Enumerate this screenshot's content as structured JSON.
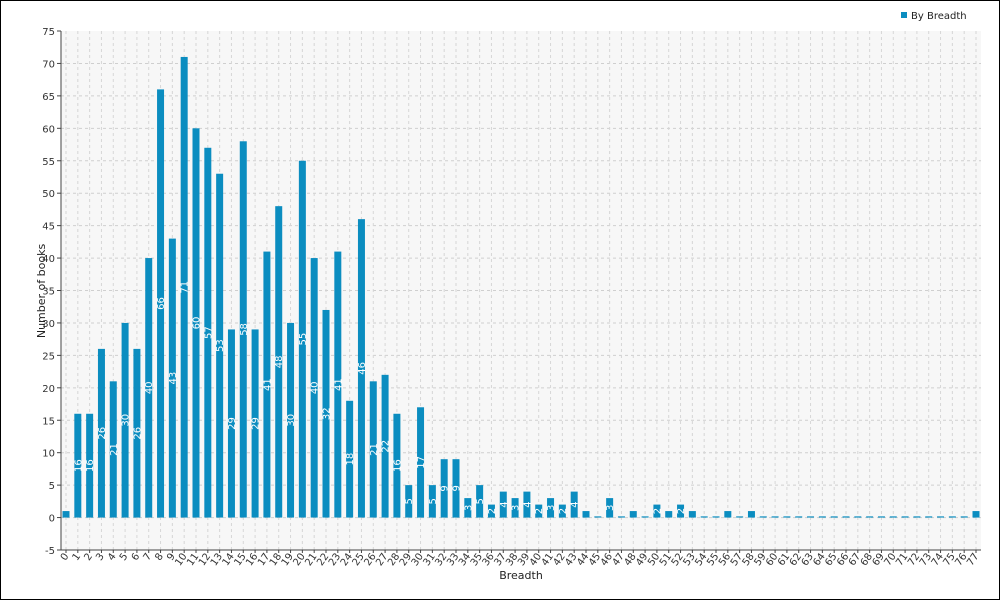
{
  "chart_data": {
    "type": "bar",
    "title": "",
    "xlabel": "Breadth",
    "ylabel": "Number of books",
    "ylim": [
      -5,
      75
    ],
    "ytick_step": 5,
    "grid": true,
    "legend_position": "top-right",
    "categories": [
      "0",
      "1",
      "2",
      "3",
      "4",
      "5",
      "6",
      "7",
      "8",
      "9",
      "10",
      "11",
      "12",
      "13",
      "14",
      "15",
      "16",
      "17",
      "18",
      "19",
      "20",
      "21",
      "22",
      "23",
      "24",
      "25",
      "26",
      "27",
      "28",
      "29",
      "30",
      "31",
      "32",
      "33",
      "34",
      "35",
      "36",
      "37",
      "38",
      "39",
      "40",
      "41",
      "42",
      "43",
      "44",
      "45",
      "46",
      "47",
      "48",
      "49",
      "50",
      "51",
      "52",
      "53",
      "54",
      "55",
      "56",
      "57",
      "58",
      "59",
      "60",
      "61",
      "62",
      "63",
      "64",
      "65",
      "66",
      "67",
      "68",
      "69",
      "70",
      "71",
      "72",
      "73",
      "74",
      "75",
      "76",
      "77"
    ],
    "series": [
      {
        "name": "By Breadth",
        "color": "#0b8dc0",
        "values": [
          1,
          16,
          16,
          26,
          21,
          30,
          26,
          40,
          66,
          43,
          71,
          60,
          57,
          53,
          29,
          58,
          29,
          41,
          48,
          30,
          55,
          40,
          32,
          41,
          18,
          46,
          21,
          22,
          16,
          5,
          17,
          5,
          9,
          9,
          3,
          5,
          2,
          4,
          3,
          4,
          2,
          3,
          2,
          4,
          1,
          0,
          3,
          0,
          1,
          0,
          2,
          1,
          2,
          1,
          0,
          0,
          1,
          0,
          1,
          0,
          0,
          0,
          0,
          0,
          0,
          0,
          0,
          0,
          0,
          0,
          0,
          0,
          0,
          0,
          0,
          0,
          0,
          1
        ]
      }
    ]
  }
}
